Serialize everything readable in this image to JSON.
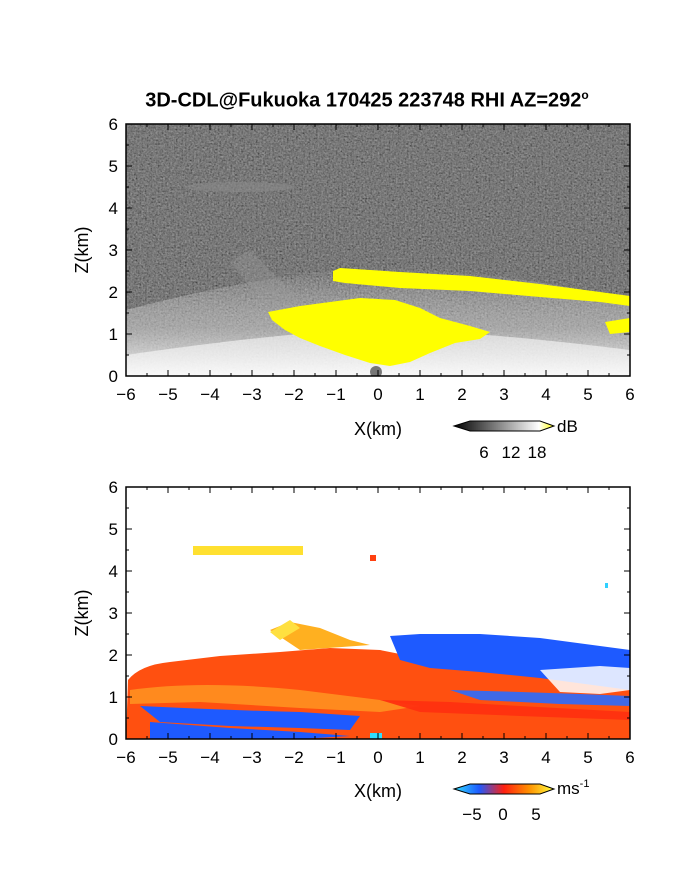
{
  "title": "3D-CDL@Fukuoka 170425 223748 RHI AZ=292",
  "title_superscript": "o",
  "chart_data": [
    {
      "type": "heatmap",
      "variable": "reflectivity",
      "xlabel": "X(km)",
      "ylabel": "Z(km)",
      "xlim": [
        -6,
        6
      ],
      "ylim": [
        0,
        6
      ],
      "xticks": [
        "-6",
        "-5",
        "-4",
        "-3",
        "-2",
        "-1",
        "0",
        "1",
        "2",
        "3",
        "4",
        "5",
        "6"
      ],
      "yticks": [
        "0",
        "1",
        "2",
        "3",
        "4",
        "5",
        "6"
      ],
      "colorbar": {
        "unit": "dB",
        "ticks": [
          "6",
          "12",
          "18"
        ],
        "range": [
          0,
          21
        ]
      },
      "colors": {
        "low": "#000000",
        "high": "#ffffff",
        "saturated": "#ffff00"
      },
      "features": [
        {
          "name": "cloud base layer",
          "x": [
            -1,
            6
          ],
          "z": [
            1.9,
            2.4
          ]
        },
        {
          "name": "dense echo near site",
          "x": [
            -2.5,
            2.7
          ],
          "z": [
            0,
            1.6
          ]
        },
        {
          "name": "elevated faint layer",
          "x": [
            -4.5,
            -1.8
          ],
          "z": [
            4.3,
            4.6
          ]
        }
      ]
    },
    {
      "type": "heatmap",
      "variable": "doppler_velocity",
      "xlabel": "X(km)",
      "ylabel": "Z(km)",
      "xlim": [
        -6,
        6
      ],
      "ylim": [
        0,
        6
      ],
      "xticks": [
        "-6",
        "-5",
        "-4",
        "-3",
        "-2",
        "-1",
        "0",
        "1",
        "2",
        "3",
        "4",
        "5",
        "6"
      ],
      "yticks": [
        "0",
        "1",
        "2",
        "3",
        "4",
        "5",
        "6"
      ],
      "colorbar": {
        "unit": "ms",
        "unit_superscript": "-1",
        "ticks": [
          "-5",
          "0",
          "5"
        ],
        "range": [
          -7,
          7
        ]
      },
      "colors": {
        "negative": "#1e5aff",
        "zero": "#ff3010",
        "positive": "#ffff40",
        "near_zero_neg": "#30d0ff"
      },
      "features": [
        {
          "name": "upper positive layer",
          "x": [
            -4.5,
            -1.8
          ],
          "z": [
            4.3,
            4.6
          ],
          "value": 5
        },
        {
          "name": "negative cloud layer",
          "x": [
            0,
            6
          ],
          "z": [
            1.2,
            2.4
          ],
          "value": -4
        },
        {
          "name": "positive low-level flow",
          "x": [
            -6,
            6
          ],
          "z": [
            0.3,
            1.9
          ],
          "value": 2
        }
      ]
    }
  ]
}
